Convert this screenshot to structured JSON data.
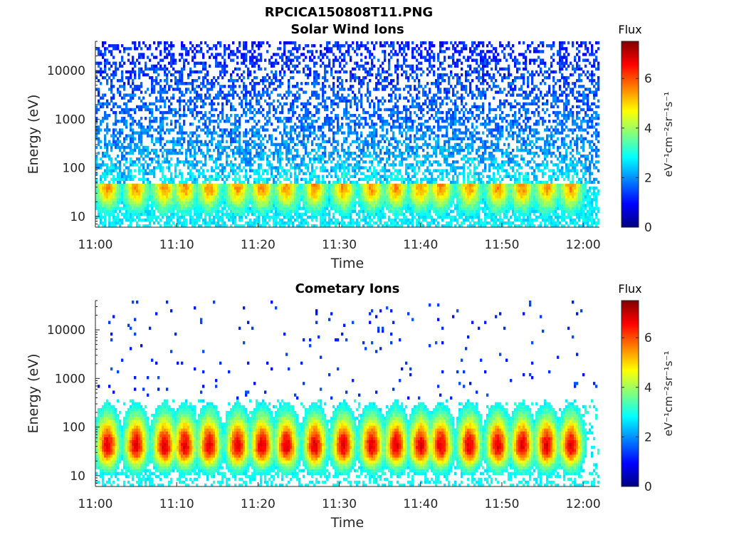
{
  "figure_title": "RPCICA150808T11.PNG",
  "colors": {
    "axes": "#262626",
    "background": "#ffffff",
    "colormap": "jet"
  },
  "chart_data": [
    {
      "type": "heatmap",
      "title": "Solar Wind Ions",
      "xlabel": "Time",
      "ylabel": "Energy (eV)",
      "y_scale": "log",
      "x_range": [
        "11:00",
        "12:02"
      ],
      "ylim": [
        6,
        40000
      ],
      "x_ticks": [
        "11:00",
        "11:10",
        "11:20",
        "11:30",
        "11:40",
        "11:50",
        "12:00"
      ],
      "y_ticks": [
        "10",
        "100",
        "1000",
        "10000"
      ],
      "colorbar": {
        "title": "Flux",
        "label": "eV⁻¹cm⁻²sr⁻¹s⁻¹",
        "min": 0,
        "max": 7.5,
        "ticks": [
          "0",
          "2",
          "4",
          "6"
        ]
      },
      "bursts_min": [
        1.5,
        5,
        8.5,
        11,
        14,
        17.5,
        20.5,
        23.5,
        27,
        30.5,
        34,
        37,
        40,
        42.5,
        46,
        49.5,
        52.5,
        55.5,
        58.5
      ],
      "peak_energy_eV": 40,
      "peak_flux": 5.5,
      "background_flux": 2.2
    },
    {
      "type": "heatmap",
      "title": "Cometary Ions",
      "xlabel": "Time",
      "ylabel": "Energy (eV)",
      "y_scale": "log",
      "x_range": [
        "11:00",
        "12:02"
      ],
      "ylim": [
        6,
        40000
      ],
      "x_ticks": [
        "11:00",
        "11:10",
        "11:20",
        "11:30",
        "11:40",
        "11:50",
        "12:00"
      ],
      "y_ticks": [
        "10",
        "100",
        "1000",
        "10000"
      ],
      "colorbar": {
        "title": "Flux",
        "label": "eV⁻¹cm⁻²sr⁻¹s⁻¹",
        "min": 0,
        "max": 7.5,
        "ticks": [
          "0",
          "2",
          "4",
          "6"
        ]
      },
      "bursts_min": [
        1.5,
        5,
        8.5,
        11,
        14,
        17.5,
        20.5,
        23.5,
        27,
        30.5,
        34,
        37,
        40,
        42.5,
        46,
        49.5,
        52.5,
        55.5,
        58.5
      ],
      "peak_energy_eV": 40,
      "peak_flux": 6.8,
      "background_flux": 0.8
    }
  ]
}
